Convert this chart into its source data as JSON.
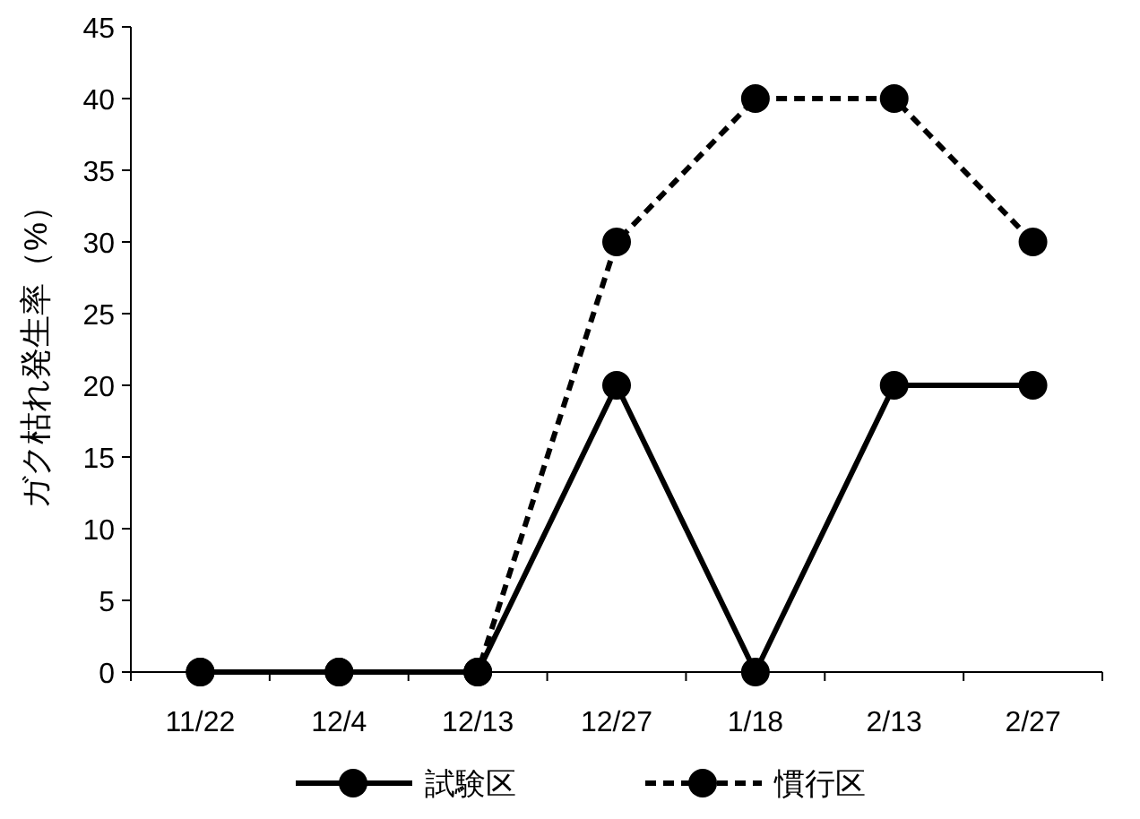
{
  "chart_data": {
    "type": "line",
    "ylabel": "ガク枯れ発生率（%）",
    "categories": [
      "11/22",
      "12/4",
      "12/13",
      "12/27",
      "1/18",
      "2/13",
      "2/27"
    ],
    "series": [
      {
        "name": "試験区",
        "color": "#000000",
        "line_style": "solid",
        "values": [
          0,
          0,
          0,
          20,
          0,
          20,
          20
        ]
      },
      {
        "name": "慣行区",
        "color": "#000000",
        "line_style": "dashed",
        "values": [
          0,
          0,
          0,
          30,
          40,
          40,
          30
        ]
      }
    ],
    "ylim": [
      0,
      45
    ],
    "yticks": [
      0,
      5,
      10,
      15,
      20,
      25,
      30,
      35,
      40,
      45
    ],
    "marker": "circle",
    "legend": "bottom",
    "grid": false
  }
}
